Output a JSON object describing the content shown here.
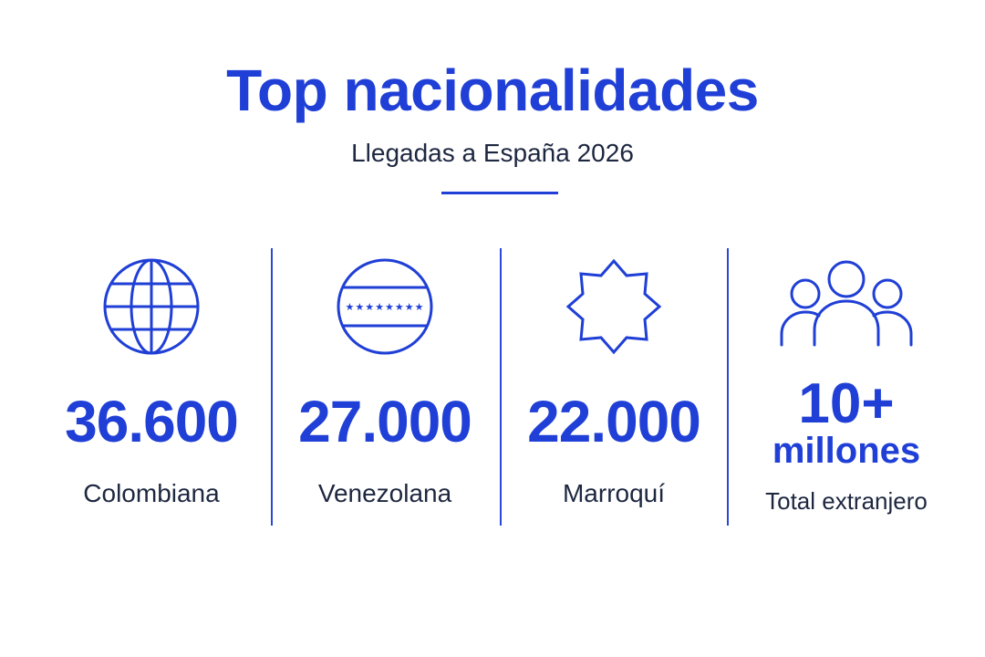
{
  "header": {
    "title": "Top nacionalidades",
    "subtitle": "Llegadas a España 2026"
  },
  "colors": {
    "accent": "#1f3fd6",
    "text": "#1d2740",
    "background": "#ffffff"
  },
  "stats": [
    {
      "icon": "globe-icon",
      "value": "36.600",
      "label": "Colombiana"
    },
    {
      "icon": "venezuela-flag-icon",
      "value": "27.000",
      "label": "Venezolana"
    },
    {
      "icon": "moroccan-star-icon",
      "value": "22.000",
      "label": "Marroquí"
    },
    {
      "icon": "people-group-icon",
      "value": "10+",
      "value_unit": "millones",
      "label": "Total extranjero"
    }
  ]
}
